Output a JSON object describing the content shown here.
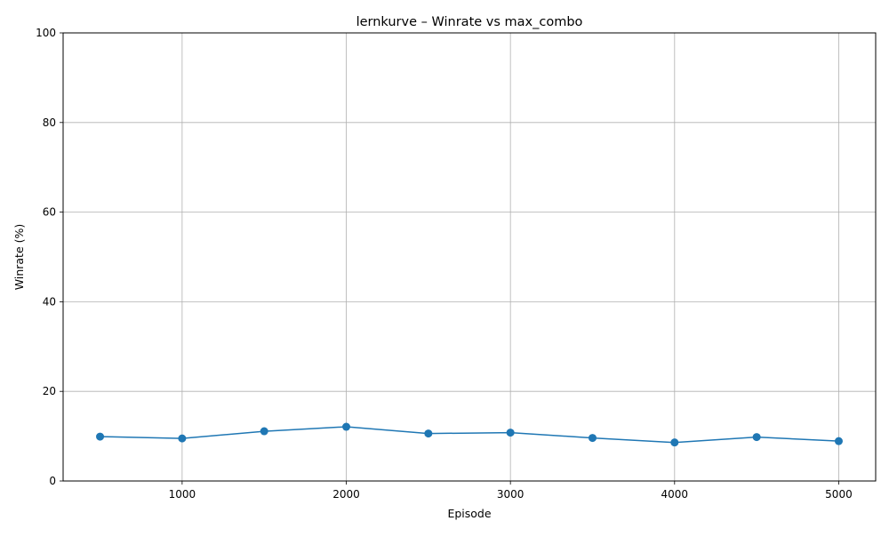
{
  "chart_data": {
    "type": "line",
    "title": "lernkurve – Winrate vs max_combo",
    "xlabel": "Episode",
    "ylabel": "Winrate (%)",
    "xlim": [
      275,
      5225
    ],
    "ylim": [
      0,
      100
    ],
    "xticks": [
      1000,
      2000,
      3000,
      4000,
      5000
    ],
    "yticks": [
      0,
      20,
      40,
      60,
      80,
      100
    ],
    "grid": true,
    "marker": "circle",
    "series": [
      {
        "color": "#1f77b4",
        "x": [
          500,
          1000,
          1500,
          2000,
          2500,
          3000,
          3500,
          4000,
          4500,
          5000
        ],
        "values": [
          9.9,
          9.5,
          11.1,
          12.1,
          10.6,
          10.8,
          9.6,
          8.6,
          9.8,
          8.9
        ]
      }
    ]
  }
}
